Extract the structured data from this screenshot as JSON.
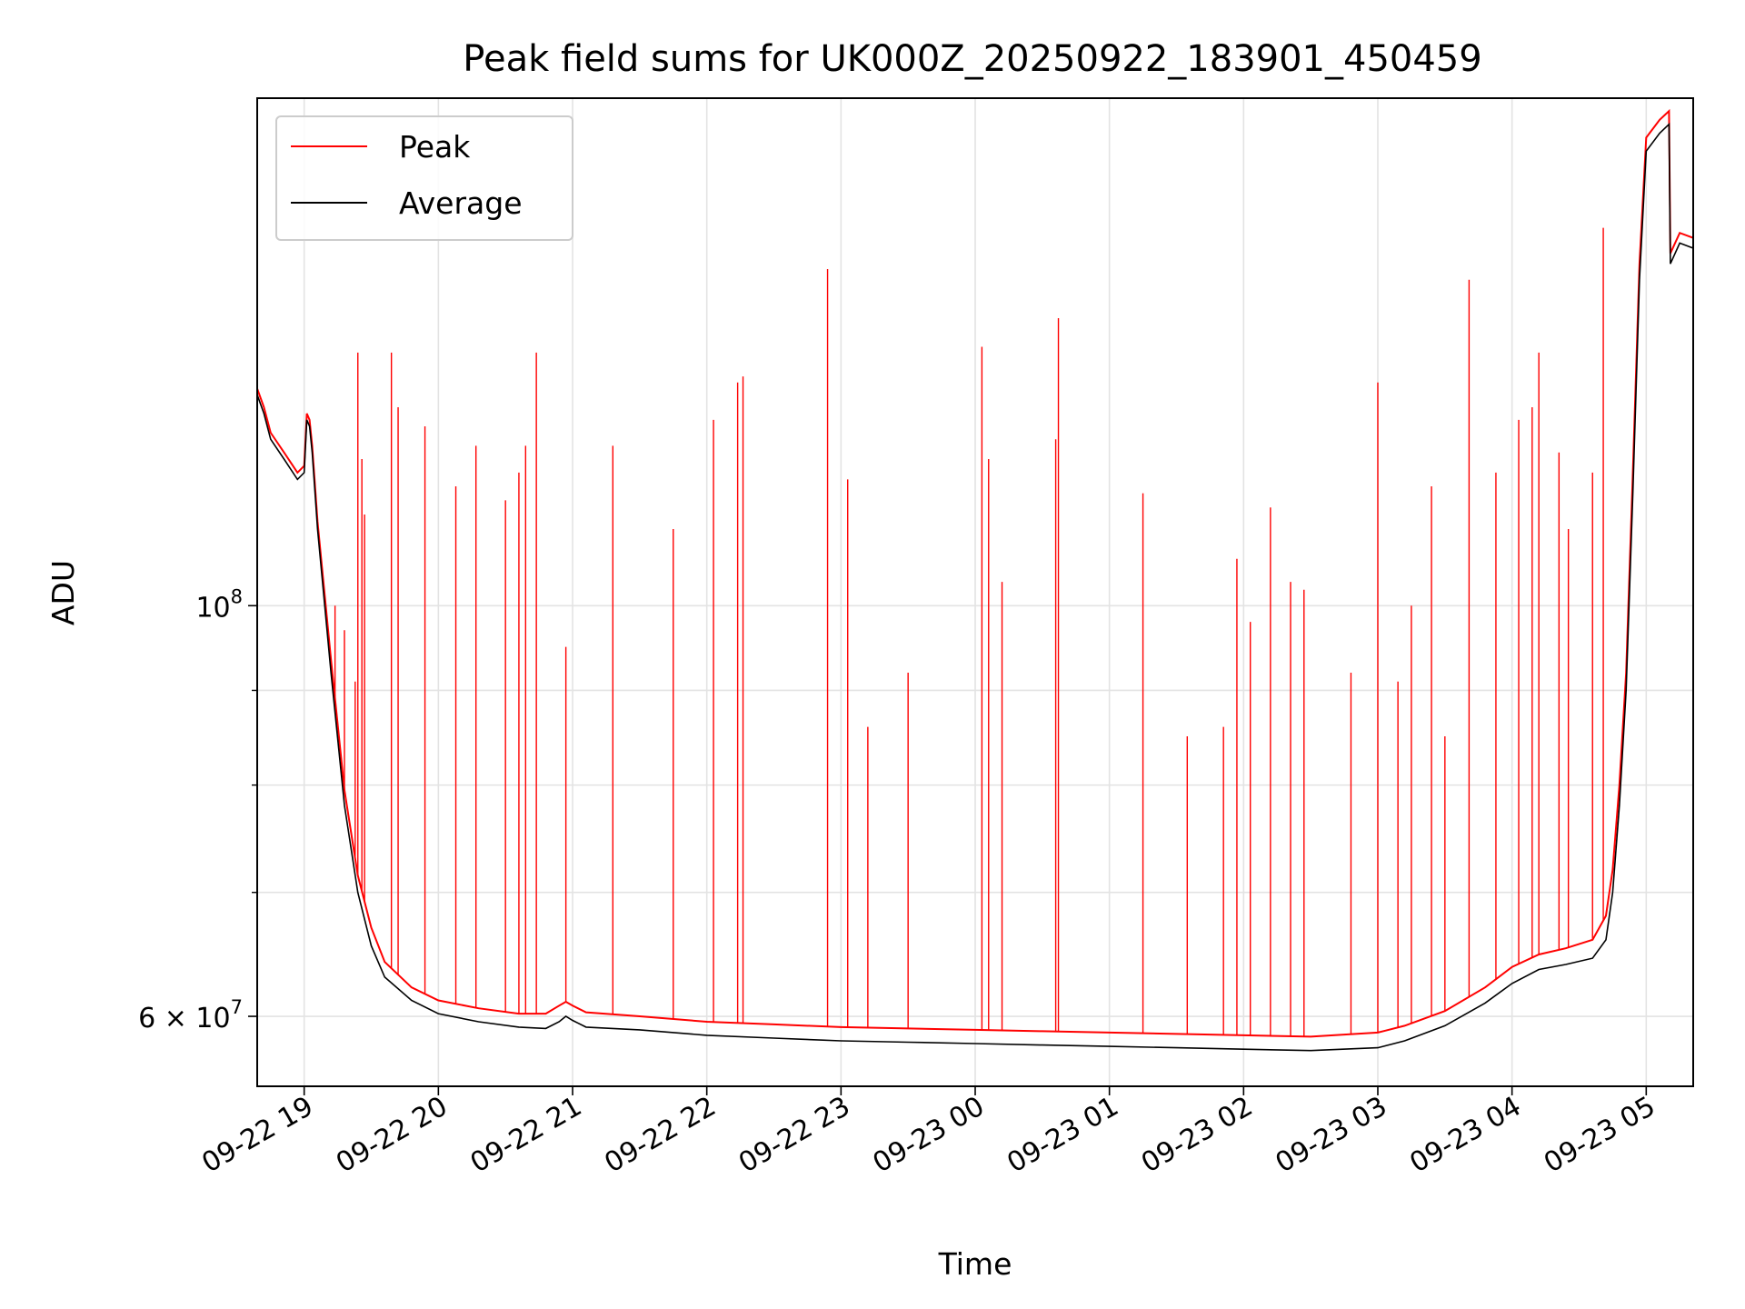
{
  "chart_data": {
    "type": "line",
    "title": "Peak field sums for UK000Z_20250922_183901_450459",
    "xlabel": "Time",
    "ylabel": "ADU",
    "yscale": "log",
    "ylim": [
      55000000,
      188000000
    ],
    "xlim_hours": [
      -0.35,
      10.35
    ],
    "x_ticks": [
      {
        "label": "09-22 19",
        "hour": 0
      },
      {
        "label": "09-22 20",
        "hour": 1
      },
      {
        "label": "09-22 21",
        "hour": 2
      },
      {
        "label": "09-22 22",
        "hour": 3
      },
      {
        "label": "09-22 23",
        "hour": 4
      },
      {
        "label": "09-23 00",
        "hour": 5
      },
      {
        "label": "09-23 01",
        "hour": 6
      },
      {
        "label": "09-23 02",
        "hour": 7
      },
      {
        "label": "09-23 03",
        "hour": 8
      },
      {
        "label": "09-23 04",
        "hour": 9
      },
      {
        "label": "09-23 05",
        "hour": 10
      }
    ],
    "y_major_ticks": [
      {
        "value": 60000000,
        "mantissa": "6 × 10",
        "exp": "7"
      },
      {
        "value": 100000000,
        "mantissa": "10",
        "exp": "8"
      }
    ],
    "y_minor_ticks": [
      70000000,
      80000000,
      90000000
    ],
    "grid": true,
    "legend": {
      "position": "upper-left",
      "entries": [
        {
          "label": "Peak",
          "color": "#ff0000"
        },
        {
          "label": "Average",
          "color": "#000000"
        }
      ]
    },
    "series": [
      {
        "name": "Average",
        "color": "#000000",
        "points": [
          [
            -0.35,
            130000000
          ],
          [
            -0.3,
            127000000
          ],
          [
            -0.25,
            123000000
          ],
          [
            -0.15,
            120000000
          ],
          [
            -0.05,
            117000000
          ],
          [
            0.0,
            118000000
          ],
          [
            0.02,
            126000000
          ],
          [
            0.04,
            125000000
          ],
          [
            0.06,
            121000000
          ],
          [
            0.1,
            110000000
          ],
          [
            0.2,
            92000000
          ],
          [
            0.3,
            78000000
          ],
          [
            0.4,
            70000000
          ],
          [
            0.5,
            65500000
          ],
          [
            0.6,
            63000000
          ],
          [
            0.8,
            61200000
          ],
          [
            1.0,
            60200000
          ],
          [
            1.3,
            59600000
          ],
          [
            1.6,
            59200000
          ],
          [
            1.8,
            59100000
          ],
          [
            1.9,
            59600000
          ],
          [
            1.95,
            60000000
          ],
          [
            2.0,
            59700000
          ],
          [
            2.1,
            59200000
          ],
          [
            2.5,
            59000000
          ],
          [
            3.0,
            58600000
          ],
          [
            3.5,
            58400000
          ],
          [
            4.0,
            58200000
          ],
          [
            4.5,
            58100000
          ],
          [
            5.0,
            58000000
          ],
          [
            5.5,
            57900000
          ],
          [
            6.0,
            57800000
          ],
          [
            6.5,
            57700000
          ],
          [
            7.0,
            57600000
          ],
          [
            7.5,
            57500000
          ],
          [
            8.0,
            57700000
          ],
          [
            8.2,
            58200000
          ],
          [
            8.5,
            59300000
          ],
          [
            8.8,
            61000000
          ],
          [
            9.0,
            62500000
          ],
          [
            9.2,
            63600000
          ],
          [
            9.4,
            64000000
          ],
          [
            9.6,
            64500000
          ],
          [
            9.7,
            66000000
          ],
          [
            9.75,
            70000000
          ],
          [
            9.8,
            78000000
          ],
          [
            9.85,
            90000000
          ],
          [
            9.9,
            115000000
          ],
          [
            9.95,
            150000000
          ],
          [
            10.0,
            176000000
          ],
          [
            10.1,
            180000000
          ],
          [
            10.17,
            182000000
          ],
          [
            10.18,
            153000000
          ],
          [
            10.25,
            157000000
          ],
          [
            10.35,
            156000000
          ]
        ]
      },
      {
        "name": "Peak",
        "color": "#ff0000",
        "points": [
          [
            -0.35,
            131000000
          ],
          [
            -0.3,
            128000000
          ],
          [
            -0.25,
            124000000
          ],
          [
            -0.15,
            121000000
          ],
          [
            -0.05,
            118000000
          ],
          [
            0.0,
            119000000
          ],
          [
            0.02,
            127000000
          ],
          [
            0.04,
            126000000
          ],
          [
            0.06,
            122000000
          ],
          [
            0.1,
            111000000
          ],
          [
            0.2,
            93500000
          ],
          [
            0.3,
            79500000
          ],
          [
            0.4,
            71500000
          ],
          [
            0.5,
            67000000
          ],
          [
            0.6,
            64200000
          ],
          [
            0.8,
            62200000
          ],
          [
            1.0,
            61200000
          ],
          [
            1.3,
            60600000
          ],
          [
            1.6,
            60200000
          ],
          [
            1.8,
            60200000
          ],
          [
            1.9,
            60800000
          ],
          [
            1.95,
            61100000
          ],
          [
            2.0,
            60800000
          ],
          [
            2.1,
            60300000
          ],
          [
            2.5,
            60000000
          ],
          [
            3.0,
            59600000
          ],
          [
            3.5,
            59400000
          ],
          [
            4.0,
            59200000
          ],
          [
            4.5,
            59100000
          ],
          [
            5.0,
            59000000
          ],
          [
            5.5,
            58900000
          ],
          [
            6.0,
            58800000
          ],
          [
            6.5,
            58700000
          ],
          [
            7.0,
            58600000
          ],
          [
            7.5,
            58500000
          ],
          [
            8.0,
            58800000
          ],
          [
            8.2,
            59300000
          ],
          [
            8.5,
            60400000
          ],
          [
            8.8,
            62200000
          ],
          [
            9.0,
            63800000
          ],
          [
            9.2,
            64800000
          ],
          [
            9.4,
            65300000
          ],
          [
            9.6,
            66000000
          ],
          [
            9.7,
            68000000
          ],
          [
            9.75,
            72000000
          ],
          [
            9.8,
            80000000
          ],
          [
            9.85,
            92000000
          ],
          [
            9.9,
            118000000
          ],
          [
            9.95,
            153000000
          ],
          [
            10.0,
            179000000
          ],
          [
            10.1,
            183000000
          ],
          [
            10.17,
            185000000
          ],
          [
            10.18,
            155000000
          ],
          [
            10.25,
            159000000
          ],
          [
            10.35,
            158000000
          ]
        ]
      }
    ],
    "peak_spikes": [
      [
        0.4,
        137000000
      ],
      [
        0.43,
        120000000
      ],
      [
        0.45,
        112000000
      ],
      [
        0.23,
        100000000
      ],
      [
        0.3,
        97000000
      ],
      [
        0.38,
        91000000
      ],
      [
        0.65,
        137000000
      ],
      [
        0.7,
        128000000
      ],
      [
        0.9,
        125000000
      ],
      [
        1.13,
        116000000
      ],
      [
        1.28,
        122000000
      ],
      [
        1.5,
        114000000
      ],
      [
        1.6,
        118000000
      ],
      [
        1.65,
        122000000
      ],
      [
        1.73,
        137000000
      ],
      [
        1.95,
        95000000
      ],
      [
        2.3,
        122000000
      ],
      [
        2.75,
        110000000
      ],
      [
        3.05,
        126000000
      ],
      [
        3.23,
        132000000
      ],
      [
        3.27,
        133000000
      ],
      [
        3.9,
        152000000
      ],
      [
        4.05,
        117000000
      ],
      [
        5.05,
        138000000
      ],
      [
        5.1,
        120000000
      ],
      [
        5.2,
        103000000
      ],
      [
        5.6,
        123000000
      ],
      [
        5.62,
        143000000
      ],
      [
        6.25,
        115000000
      ],
      [
        6.95,
        106000000
      ],
      [
        7.2,
        113000000
      ],
      [
        7.35,
        103000000
      ],
      [
        7.45,
        102000000
      ],
      [
        8.0,
        132000000
      ],
      [
        8.15,
        91000000
      ],
      [
        8.4,
        116000000
      ],
      [
        8.68,
        150000000
      ],
      [
        8.88,
        118000000
      ],
      [
        9.05,
        126000000
      ],
      [
        9.15,
        128000000
      ],
      [
        9.2,
        137000000
      ],
      [
        9.35,
        121000000
      ],
      [
        9.42,
        110000000
      ],
      [
        9.6,
        118000000
      ],
      [
        9.68,
        160000000
      ],
      [
        8.5,
        85000000
      ],
      [
        8.25,
        100000000
      ],
      [
        7.8,
        92000000
      ],
      [
        6.58,
        85000000
      ],
      [
        6.85,
        86000000
      ],
      [
        7.05,
        98000000
      ],
      [
        4.5,
        92000000
      ],
      [
        4.2,
        86000000
      ]
    ]
  }
}
